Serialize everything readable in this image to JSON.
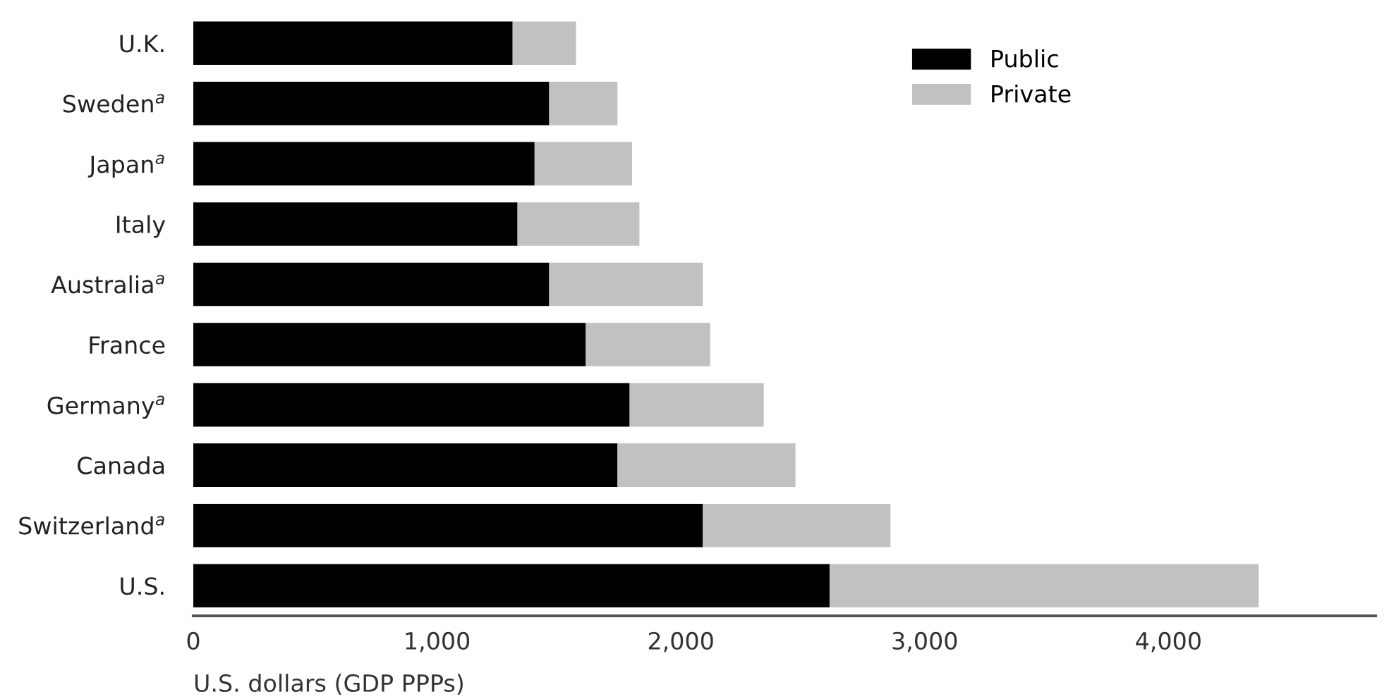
{
  "chart_data": {
    "type": "bar",
    "orientation": "horizontal",
    "stacked": true,
    "categories": [
      "U.K.",
      "Sweden$^{a}$",
      "Japan$^{a}$",
      "Italy",
      "Australia$^{a}$",
      "France",
      "Germany$^{a}$",
      "Canada",
      "Switzerland$^{a}$",
      "U.S."
    ],
    "series": [
      {
        "name": "Public",
        "color": "#000000",
        "values": [
          1310,
          1460,
          1400,
          1330,
          1460,
          1610,
          1790,
          1740,
          2090,
          2610
        ]
      },
      {
        "name": "Private",
        "color": "#c1c1c1",
        "values": [
          260,
          280,
          400,
          500,
          630,
          510,
          550,
          730,
          770,
          1760
        ]
      }
    ],
    "xlabel": "U.S. dollars (GDP PPPs)",
    "xlim": [
      0,
      4850
    ],
    "xticks": [
      {
        "value": 0,
        "label": "0"
      },
      {
        "value": 1000,
        "label": "1,000"
      },
      {
        "value": 2000,
        "label": "2,000"
      },
      {
        "value": 3000,
        "label": "3,000"
      },
      {
        "value": 4000,
        "label": "4,000"
      }
    ],
    "grid": false,
    "legend": "top right"
  }
}
